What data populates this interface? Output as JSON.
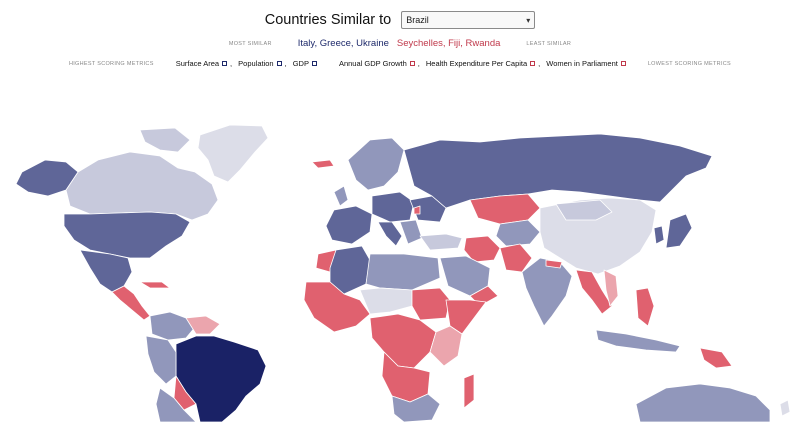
{
  "header": {
    "title": "Countries Similar to",
    "selected_country": "Brazil"
  },
  "similarity": {
    "most_label": "MOST SIMILAR",
    "most_similar": "Italy, Greece, Ukraine",
    "least_similar": "Seychelles, Fiji, Rwanda",
    "least_label": "LEAST SIMILAR"
  },
  "metrics": {
    "high_label": "HIGHEST SCORING METRICS",
    "high": [
      "Surface Area",
      "Population",
      "GDP"
    ],
    "low": [
      "Annual GDP Growth",
      "Health Expenditure Per Capita",
      "Women in Parliament"
    ],
    "low_label": "LOWEST SCORING METRICS"
  },
  "colors": {
    "selected": "#1a2266",
    "very_similar": "#5f6698",
    "similar": "#9197bb",
    "mid": "#c7c9dc",
    "neutral": "#dcdde8",
    "dissimilar_light": "#eba5ad",
    "dissimilar": "#e0616f"
  }
}
